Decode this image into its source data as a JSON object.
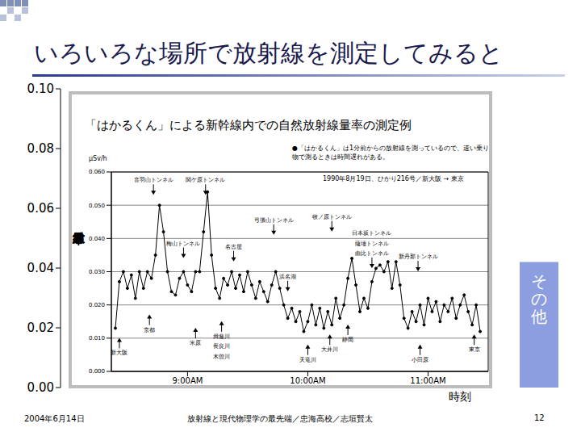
{
  "title": "いろいろな場所で放射線を測定してみると",
  "footer": {
    "date": "2004年6月14日",
    "text": "放射線と現代物理学の最先端／忠海高校／志垣賢太",
    "page": 12
  },
  "chart_data": [
    {
      "type": "bar",
      "categories": [
        "その他"
      ],
      "values": [
        0.042
      ],
      "color": "#8c9ee0",
      "ylim": [
        0,
        0.1
      ],
      "yticks": [
        {
          "value": 0,
          "label": "0.00"
        },
        {
          "value": 0.02,
          "label": "0.02"
        },
        {
          "value": 0.04,
          "label": "0.04"
        },
        {
          "value": 0.06,
          "label": "0.06"
        },
        {
          "value": 0.08,
          "label": "0.08"
        },
        {
          "value": 0.1,
          "label": "0.10"
        }
      ],
      "tick_labels": "y"
    },
    {
      "type": "line",
      "title": "「はかるくん」による新幹線内での自然放射線量率の測定例",
      "subtitle": "1990年8月19日、ひかり216号／新大阪 → 東京",
      "note": "●「はかるくん」は1分前からの放射線を測っているので、速い乗り物で測るときは時間遅れがある。",
      "y_label": "放射線量率",
      "y_unit": "μSv/h",
      "x_label": "時刻",
      "x": [
        504,
        506,
        508,
        510,
        512,
        514,
        516,
        518,
        520,
        522,
        524,
        526,
        528,
        530,
        532,
        534,
        536,
        538,
        540,
        542,
        544,
        546,
        548,
        550,
        552,
        554,
        556,
        558,
        560,
        562,
        564,
        566,
        568,
        570,
        572,
        574,
        576,
        578,
        580,
        582,
        584,
        586,
        588,
        590,
        592,
        594,
        596,
        598,
        600,
        602,
        604,
        606,
        608,
        610,
        612,
        614,
        616,
        618,
        620,
        622,
        624,
        626,
        628,
        630,
        632,
        634,
        636,
        638,
        640,
        642,
        644,
        646,
        648,
        650,
        652,
        654,
        656,
        658,
        660,
        662,
        664,
        666,
        668,
        670,
        672,
        674,
        676,
        678,
        680,
        682,
        684,
        686
      ],
      "values": [
        0.013,
        0.027,
        0.03,
        0.025,
        0.029,
        0.022,
        0.03,
        0.025,
        0.03,
        0.028,
        0.035,
        0.05,
        0.042,
        0.03,
        0.024,
        0.023,
        0.028,
        0.03,
        0.026,
        0.024,
        0.03,
        0.03,
        0.042,
        0.054,
        0.035,
        0.025,
        0.022,
        0.028,
        0.026,
        0.03,
        0.025,
        0.029,
        0.024,
        0.03,
        0.026,
        0.022,
        0.027,
        0.024,
        0.021,
        0.026,
        0.03,
        0.025,
        0.02,
        0.016,
        0.019,
        0.015,
        0.018,
        0.012,
        0.015,
        0.02,
        0.014,
        0.019,
        0.013,
        0.018,
        0.014,
        0.022,
        0.016,
        0.02,
        0.028,
        0.034,
        0.026,
        0.018,
        0.022,
        0.019,
        0.027,
        0.031,
        0.032,
        0.03,
        0.033,
        0.025,
        0.033,
        0.026,
        0.016,
        0.013,
        0.018,
        0.015,
        0.02,
        0.014,
        0.022,
        0.018,
        0.021,
        0.015,
        0.02,
        0.018,
        0.022,
        0.016,
        0.02,
        0.023,
        0.018,
        0.014,
        0.02,
        0.012
      ],
      "color": "#000000",
      "marker": "circle",
      "xlim": [
        502,
        690
      ],
      "xticks": [
        {
          "value": 540,
          "label": "9:00AM"
        },
        {
          "value": 600,
          "label": "10:00AM"
        },
        {
          "value": 660,
          "label": "11:00AM"
        }
      ],
      "ylim": [
        0,
        0.06
      ],
      "yticks": [
        {
          "value": 0,
          "label": "0.000"
        },
        {
          "value": 0.01,
          "label": "0.010"
        },
        {
          "value": 0.02,
          "label": "0.020"
        },
        {
          "value": 0.03,
          "label": "0.030"
        },
        {
          "value": 0.04,
          "label": "0.040"
        },
        {
          "value": 0.05,
          "label": "0.050"
        },
        {
          "value": 0.06,
          "label": "0.060"
        }
      ],
      "grid": true,
      "annotations": [
        {
          "text": "音羽山トンネル",
          "x": 523,
          "y": 0.057
        },
        {
          "text": "関ケ原トンネル",
          "x": 549,
          "y": 0.057
        },
        {
          "text": "梅山トンネル",
          "x": 538,
          "y": 0.038
        },
        {
          "text": "名古屋",
          "x": 563,
          "y": 0.037
        },
        {
          "text": "弓張山トンネル",
          "x": 583,
          "y": 0.045
        },
        {
          "text": "浜名湖",
          "x": 590,
          "y": 0.028
        },
        {
          "text": "牧ノ原トンネル",
          "x": 612,
          "y": 0.046
        },
        {
          "text": "日本坂トンネル",
          "x": 632,
          "y": 0.041
        },
        {
          "text": "薩埵トンネル",
          "x": 632,
          "y": 0.038
        },
        {
          "text": "由比トンネル",
          "x": 632,
          "y": 0.035
        },
        {
          "text": "新丹那トンネル",
          "x": 655,
          "y": 0.034
        },
        {
          "text": "新大阪",
          "x": 506,
          "y": 0.005
        },
        {
          "text": "京都",
          "x": 521,
          "y": 0.012
        },
        {
          "text": "米原",
          "x": 544,
          "y": 0.008
        },
        {
          "text": "揖斐川",
          "x": 557,
          "y": 0.01
        },
        {
          "text": "長良川",
          "x": 557,
          "y": 0.007
        },
        {
          "text": "木曽川",
          "x": 557,
          "y": 0.004
        },
        {
          "text": "天竜川",
          "x": 600,
          "y": 0.003
        },
        {
          "text": "大井川",
          "x": 611,
          "y": 0.006
        },
        {
          "text": "静岡",
          "x": 620,
          "y": 0.009
        },
        {
          "text": "小田原",
          "x": 656,
          "y": 0.003
        },
        {
          "text": "東京",
          "x": 683,
          "y": 0.006
        }
      ]
    }
  ]
}
